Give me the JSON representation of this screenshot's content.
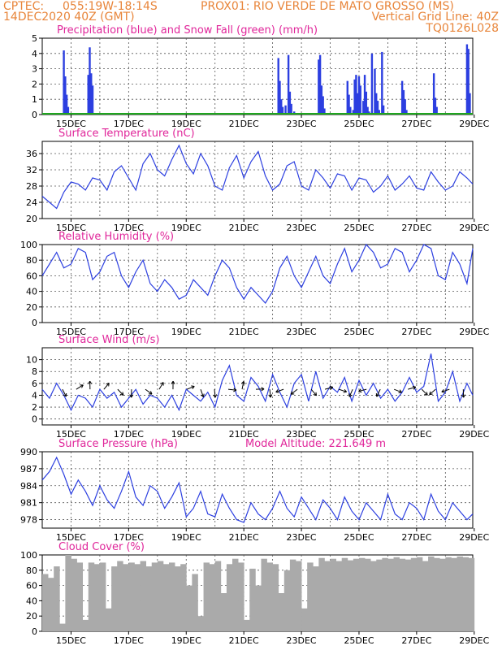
{
  "header": {
    "line1_left": "CPTEC:",
    "line1_coords": "055:19W-18:14S",
    "line1_station": "PROX01: RIO VERDE DE MATO GROSSO (MS)",
    "line2_left": "14DEC2020 40Z (GMT)",
    "line2_right": "Vertical Grid Line: 40Z",
    "line3_right": "TQ0126L028"
  },
  "colors": {
    "header": "#e8853a",
    "title": "#e0269a",
    "line": "#2c3fe0",
    "precip": "#2c3fe0",
    "snow": "#1fa61f",
    "cloud": "#aaaaaa"
  },
  "x_axis": {
    "labels": [
      "15DEC",
      "17DEC",
      "19DEC",
      "21DEC",
      "23DEC",
      "25DEC",
      "27DEC",
      "29DEC"
    ],
    "label_days": [
      15,
      17,
      19,
      21,
      23,
      25,
      27,
      29
    ],
    "range_days": [
      14.0,
      28.95
    ]
  },
  "chart_data": [
    {
      "type": "bar",
      "title": "Precipitation (blue) and Snow Fall (green) (mm/h)",
      "ylim": [
        0,
        5
      ],
      "yticks": [
        "0",
        "1",
        "2",
        "3",
        "4",
        "5"
      ],
      "series": [
        {
          "name": "Precipitation",
          "x": [
            14.75,
            14.8,
            14.85,
            14.9,
            15.6,
            15.65,
            15.7,
            15.75,
            22.2,
            22.25,
            22.3,
            22.35,
            22.45,
            22.55,
            22.6,
            22.65,
            22.75,
            23.6,
            23.65,
            23.7,
            23.75,
            23.8,
            24.6,
            24.65,
            24.7,
            24.8,
            24.85,
            24.9,
            24.95,
            25.0,
            25.05,
            25.15,
            25.2,
            25.25,
            25.3,
            25.35,
            25.45,
            25.55,
            25.6,
            25.65,
            25.7,
            25.8,
            25.85,
            26.5,
            26.55,
            26.6,
            26.65,
            27.6,
            27.65,
            27.7,
            27.75,
            28.75,
            28.8,
            28.85
          ],
          "values": [
            4.2,
            2.5,
            1.3,
            0.5,
            2.6,
            4.4,
            2.7,
            1.9,
            3.7,
            2.2,
            1.0,
            0.5,
            0.6,
            3.9,
            1.5,
            0.7,
            0.2,
            3.6,
            3.9,
            1.9,
            1.2,
            0.4,
            2.2,
            1.3,
            0.5,
            0.3,
            2.3,
            2.6,
            1.4,
            2.5,
            1.9,
            0.9,
            2.6,
            1.5,
            0.5,
            0.2,
            4.0,
            3.0,
            1.4,
            0.9,
            0.3,
            4.1,
            0.6,
            2.2,
            1.6,
            1.0,
            0.3,
            2.7,
            1.1,
            0.5,
            0.1,
            4.6,
            4.3,
            1.4
          ]
        },
        {
          "name": "Snow Fall",
          "x": [
            14.0,
            28.95
          ],
          "values": [
            0.05,
            0.05
          ]
        }
      ]
    },
    {
      "type": "line",
      "title": "Surface Temperature (nC)",
      "ylim": [
        20,
        39
      ],
      "yticks": [
        "20",
        "24",
        "28",
        "32",
        "36"
      ],
      "series": [
        {
          "name": "Surface Temperature",
          "x": [
            14.0,
            14.25,
            14.5,
            14.75,
            15.0,
            15.25,
            15.5,
            15.75,
            16.0,
            16.25,
            16.5,
            16.75,
            17.0,
            17.25,
            17.5,
            17.75,
            18.0,
            18.25,
            18.5,
            18.75,
            19.0,
            19.25,
            19.5,
            19.75,
            20.0,
            20.25,
            20.5,
            20.75,
            21.0,
            21.25,
            21.5,
            21.75,
            22.0,
            22.25,
            22.5,
            22.75,
            23.0,
            23.25,
            23.5,
            23.75,
            24.0,
            24.25,
            24.5,
            24.75,
            25.0,
            25.25,
            25.5,
            25.75,
            26.0,
            26.25,
            26.5,
            26.75,
            27.0,
            27.25,
            27.5,
            27.75,
            28.0,
            28.25,
            28.5,
            28.75,
            28.95
          ],
          "values": [
            25.5,
            24.0,
            22.5,
            26.5,
            29.0,
            28.5,
            27.0,
            30.0,
            29.5,
            27.0,
            31.5,
            33.0,
            30.0,
            27.0,
            33.5,
            36.0,
            32.0,
            30.5,
            34.5,
            38.0,
            33.5,
            31.0,
            36.0,
            33.0,
            28.0,
            27.0,
            32.5,
            35.5,
            30.0,
            34.0,
            36.5,
            30.5,
            27.0,
            28.5,
            33.0,
            34.0,
            28.0,
            27.0,
            32.0,
            30.0,
            27.5,
            31.0,
            30.5,
            27.0,
            30.0,
            29.5,
            26.5,
            28.0,
            30.5,
            27.0,
            28.5,
            30.5,
            27.5,
            27.0,
            31.5,
            29.0,
            27.0,
            28.0,
            31.5,
            30.0,
            28.5
          ]
        }
      ]
    },
    {
      "type": "line",
      "title": "Relative Humidity (%)",
      "ylim": [
        0,
        100
      ],
      "yticks": [
        "0",
        "20",
        "40",
        "60",
        "80",
        "100"
      ],
      "series": [
        {
          "name": "Relative Humidity",
          "x": [
            14.0,
            14.25,
            14.5,
            14.75,
            15.0,
            15.25,
            15.5,
            15.75,
            16.0,
            16.25,
            16.5,
            16.75,
            17.0,
            17.25,
            17.5,
            17.75,
            18.0,
            18.25,
            18.5,
            18.75,
            19.0,
            19.25,
            19.5,
            19.75,
            20.0,
            20.25,
            20.5,
            20.75,
            21.0,
            21.25,
            21.5,
            21.75,
            22.0,
            22.25,
            22.5,
            22.75,
            23.0,
            23.25,
            23.5,
            23.75,
            24.0,
            24.25,
            24.5,
            24.75,
            25.0,
            25.25,
            25.5,
            25.75,
            26.0,
            26.25,
            26.5,
            26.75,
            27.0,
            27.25,
            27.5,
            27.75,
            28.0,
            28.25,
            28.5,
            28.75,
            28.95
          ],
          "values": [
            60,
            75,
            90,
            70,
            75,
            95,
            90,
            55,
            65,
            85,
            90,
            60,
            45,
            65,
            80,
            50,
            40,
            55,
            45,
            30,
            35,
            55,
            45,
            35,
            60,
            80,
            70,
            45,
            30,
            45,
            35,
            25,
            40,
            70,
            85,
            60,
            45,
            65,
            85,
            60,
            50,
            75,
            95,
            65,
            80,
            100,
            90,
            70,
            75,
            95,
            90,
            65,
            80,
            100,
            95,
            60,
            55,
            90,
            75,
            50,
            95
          ]
        }
      ]
    },
    {
      "type": "line",
      "title": "Surface Wind (m/s)",
      "ylim": [
        -1,
        12
      ],
      "yticks": [
        "0",
        "2",
        "4",
        "6",
        "8",
        "10"
      ],
      "series": [
        {
          "name": "Surface Wind",
          "x": [
            14.0,
            14.25,
            14.5,
            14.75,
            15.0,
            15.25,
            15.5,
            15.75,
            16.0,
            16.25,
            16.5,
            16.75,
            17.0,
            17.25,
            17.5,
            17.75,
            18.0,
            18.25,
            18.5,
            18.75,
            19.0,
            19.25,
            19.5,
            19.75,
            20.0,
            20.25,
            20.5,
            20.75,
            21.0,
            21.25,
            21.5,
            21.75,
            22.0,
            22.25,
            22.5,
            22.75,
            23.0,
            23.25,
            23.5,
            23.75,
            24.0,
            24.25,
            24.5,
            24.75,
            25.0,
            25.25,
            25.5,
            25.75,
            26.0,
            26.25,
            26.5,
            26.75,
            27.0,
            27.25,
            27.5,
            27.75,
            28.0,
            28.25,
            28.5,
            28.75,
            28.95
          ],
          "values": [
            5.0,
            3.5,
            6.0,
            4.0,
            1.5,
            4.0,
            3.5,
            2.0,
            5.0,
            3.5,
            4.5,
            2.0,
            3.5,
            5.0,
            2.5,
            4.0,
            3.5,
            2.0,
            4.0,
            1.5,
            5.0,
            4.0,
            3.0,
            4.5,
            2.0,
            6.5,
            9.0,
            4.0,
            3.0,
            7.0,
            5.5,
            3.0,
            7.5,
            4.5,
            2.0,
            6.0,
            7.5,
            3.0,
            8.0,
            3.5,
            5.5,
            4.5,
            7.0,
            3.0,
            6.5,
            4.0,
            6.0,
            3.5,
            5.0,
            3.0,
            4.5,
            7.0,
            4.5,
            5.5,
            11.0,
            3.0,
            4.5,
            8.0,
            3.0,
            6.0,
            4.0
          ]
        }
      ]
    },
    {
      "type": "line",
      "title": "Surface Pressure (hPa)",
      "annotation": "Model Altitude: 221.649  m",
      "ylim": [
        976.5,
        990
      ],
      "yticks": [
        "978",
        "981",
        "984",
        "987",
        "990"
      ],
      "series": [
        {
          "name": "Surface Pressure",
          "x": [
            14.0,
            14.25,
            14.5,
            14.75,
            15.0,
            15.25,
            15.5,
            15.75,
            16.0,
            16.25,
            16.5,
            16.75,
            17.0,
            17.25,
            17.5,
            17.75,
            18.0,
            18.25,
            18.5,
            18.75,
            19.0,
            19.25,
            19.5,
            19.75,
            20.0,
            20.25,
            20.5,
            20.75,
            21.0,
            21.25,
            21.5,
            21.75,
            22.0,
            22.25,
            22.5,
            22.75,
            23.0,
            23.25,
            23.5,
            23.75,
            24.0,
            24.25,
            24.5,
            24.75,
            25.0,
            25.25,
            25.5,
            25.75,
            26.0,
            26.25,
            26.5,
            26.75,
            27.0,
            27.25,
            27.5,
            27.75,
            28.0,
            28.25,
            28.5,
            28.75,
            28.95
          ],
          "values": [
            985,
            986.5,
            989,
            986,
            982.5,
            985,
            983,
            980.5,
            984,
            981.5,
            980,
            983,
            986.5,
            982,
            980.5,
            984,
            983,
            980,
            982,
            984.5,
            978.5,
            980,
            983,
            979,
            978.5,
            982.5,
            980,
            978,
            977.5,
            981,
            979,
            978,
            980,
            983,
            980,
            978.5,
            982,
            980,
            978,
            981.5,
            980,
            978,
            982,
            979.5,
            978,
            981,
            979.5,
            978,
            982.5,
            979,
            978,
            981,
            980,
            978,
            982.5,
            979.5,
            978,
            981,
            979.5,
            978,
            979
          ]
        }
      ]
    },
    {
      "type": "bar",
      "title": "Cloud Cover (%)",
      "ylim": [
        0,
        100
      ],
      "yticks": [
        "0",
        "20",
        "40",
        "60",
        "80",
        "100"
      ],
      "series": [
        {
          "name": "Cloud Cover",
          "x": [
            14.1,
            14.3,
            14.5,
            14.7,
            14.9,
            15.1,
            15.3,
            15.5,
            15.7,
            15.9,
            16.1,
            16.3,
            16.5,
            16.7,
            16.9,
            17.1,
            17.3,
            17.5,
            17.7,
            17.9,
            18.1,
            18.3,
            18.5,
            18.7,
            18.9,
            19.1,
            19.3,
            19.5,
            19.7,
            19.9,
            20.1,
            20.3,
            20.5,
            20.7,
            20.9,
            21.1,
            21.3,
            21.5,
            21.7,
            21.9,
            22.1,
            22.3,
            22.5,
            22.7,
            22.9,
            23.1,
            23.3,
            23.5,
            23.7,
            23.9,
            24.1,
            24.3,
            24.5,
            24.7,
            24.9,
            25.1,
            25.3,
            25.5,
            25.7,
            25.9,
            26.1,
            26.3,
            26.5,
            26.7,
            26.9,
            27.1,
            27.3,
            27.5,
            27.7,
            27.9,
            28.1,
            28.3,
            28.5,
            28.7,
            28.9
          ],
          "values": [
            75,
            70,
            85,
            10,
            100,
            95,
            90,
            15,
            90,
            88,
            90,
            30,
            85,
            92,
            88,
            90,
            88,
            92,
            85,
            90,
            92,
            88,
            90,
            85,
            88,
            60,
            75,
            20,
            90,
            88,
            92,
            50,
            88,
            95,
            90,
            15,
            82,
            60,
            95,
            90,
            88,
            50,
            80,
            94,
            92,
            30,
            90,
            85,
            96,
            92,
            95,
            92,
            96,
            93,
            95,
            96,
            95,
            92,
            94,
            96,
            95,
            97,
            95,
            94,
            96,
            97,
            92,
            98,
            96,
            95,
            97,
            96,
            98,
            97,
            96
          ]
        }
      ]
    }
  ]
}
